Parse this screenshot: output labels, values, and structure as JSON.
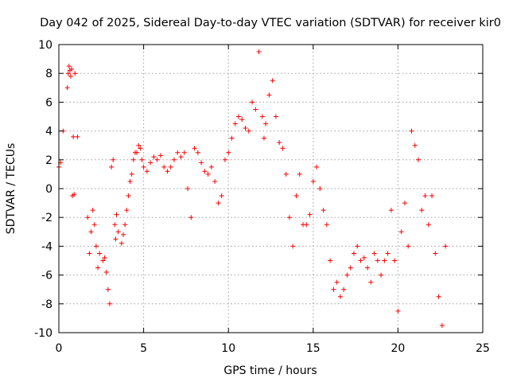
{
  "chart_data": {
    "type": "scatter",
    "title": "Day 042 of 2025, Sidereal Day-to-day VTEC variation (SDTVAR) for receiver kir0",
    "xlabel": "GPS time / hours",
    "ylabel": "SDTVAR / TECUs",
    "xlim": [
      0,
      25
    ],
    "ylim": [
      -10,
      10
    ],
    "xticks": [
      0,
      5,
      10,
      15,
      20,
      25
    ],
    "yticks": [
      -10,
      -8,
      -6,
      -4,
      -2,
      0,
      2,
      4,
      6,
      8,
      10
    ],
    "grid": true,
    "marker": "+",
    "color": "#ff0000",
    "series": [
      {
        "name": "SDTVAR",
        "x": [
          0.0,
          0.1,
          0.25,
          0.5,
          0.55,
          0.6,
          0.65,
          0.7,
          0.75,
          0.8,
          0.85,
          0.9,
          0.95,
          1.1,
          1.7,
          1.8,
          1.9,
          2.0,
          2.1,
          2.2,
          2.3,
          2.4,
          2.6,
          2.7,
          2.8,
          2.9,
          3.0,
          3.1,
          3.2,
          3.3,
          3.35,
          3.4,
          3.5,
          3.7,
          3.8,
          3.9,
          4.0,
          4.1,
          4.2,
          4.3,
          4.4,
          4.5,
          4.6,
          4.7,
          4.8,
          4.9,
          5.0,
          5.2,
          5.4,
          5.6,
          5.8,
          6.0,
          6.2,
          6.4,
          6.6,
          6.8,
          7.0,
          7.2,
          7.4,
          7.6,
          7.8,
          8.0,
          8.2,
          8.4,
          8.6,
          8.8,
          9.0,
          9.2,
          9.4,
          9.6,
          9.8,
          10.0,
          10.2,
          10.4,
          10.6,
          10.8,
          11.0,
          11.2,
          11.4,
          11.6,
          11.8,
          12.0,
          12.1,
          12.2,
          12.4,
          12.6,
          12.8,
          13.0,
          13.2,
          13.4,
          13.6,
          13.8,
          14.0,
          14.2,
          14.4,
          14.6,
          14.8,
          15.0,
          15.2,
          15.4,
          15.6,
          15.8,
          16.0,
          16.2,
          16.4,
          16.6,
          16.8,
          17.0,
          17.2,
          17.4,
          17.6,
          17.8,
          18.0,
          18.2,
          18.4,
          18.6,
          18.8,
          19.0,
          19.2,
          19.4,
          19.6,
          19.8,
          20.0,
          20.2,
          20.4,
          20.6,
          20.8,
          21.0,
          21.2,
          21.4,
          21.6,
          21.8,
          22.0,
          22.2,
          22.4,
          22.6,
          22.8
        ],
        "y": [
          1.5,
          1.8,
          4.0,
          7.0,
          8.0,
          8.5,
          8.2,
          7.8,
          8.3,
          -0.5,
          3.6,
          -0.4,
          8.0,
          3.6,
          -2.0,
          -4.5,
          -3.0,
          -1.5,
          -2.5,
          -4.0,
          -5.5,
          -4.5,
          -5.0,
          -4.8,
          -5.8,
          -7.0,
          -8.0,
          1.5,
          2.0,
          -2.5,
          -3.5,
          -1.8,
          -3.0,
          -3.8,
          -3.2,
          -2.5,
          -1.5,
          -0.5,
          0.5,
          1.0,
          2.0,
          2.5,
          2.5,
          3.0,
          2.8,
          2.0,
          1.5,
          1.2,
          1.8,
          2.2,
          2.0,
          2.3,
          1.5,
          1.2,
          1.5,
          2.0,
          2.5,
          2.2,
          2.5,
          0.0,
          -2.0,
          2.8,
          2.5,
          1.8,
          1.2,
          1.0,
          1.5,
          0.5,
          -1.0,
          -0.5,
          2.0,
          2.5,
          3.5,
          4.5,
          5.0,
          4.8,
          4.2,
          4.0,
          6.0,
          5.5,
          9.5,
          5.0,
          3.5,
          4.5,
          6.5,
          7.5,
          5.0,
          3.2,
          2.8,
          1.0,
          -2.0,
          -4.0,
          -0.5,
          1.0,
          -2.5,
          -2.5,
          -1.8,
          0.5,
          1.5,
          0.0,
          -1.5,
          -2.5,
          -5.0,
          -7.0,
          -6.5,
          -7.5,
          -7.0,
          -6.0,
          -5.5,
          -4.5,
          -4.0,
          -5.0,
          -4.8,
          -5.5,
          -6.5,
          -4.5,
          -5.0,
          -6.0,
          -5.0,
          -4.5,
          -1.5,
          -5.0,
          -8.5,
          -3.0,
          -1.0,
          -4.0,
          4.0,
          3.0,
          2.0,
          -1.5,
          -0.5,
          -2.5,
          -0.5,
          -4.5,
          -7.5,
          -9.5,
          -4.0
        ]
      }
    ]
  }
}
